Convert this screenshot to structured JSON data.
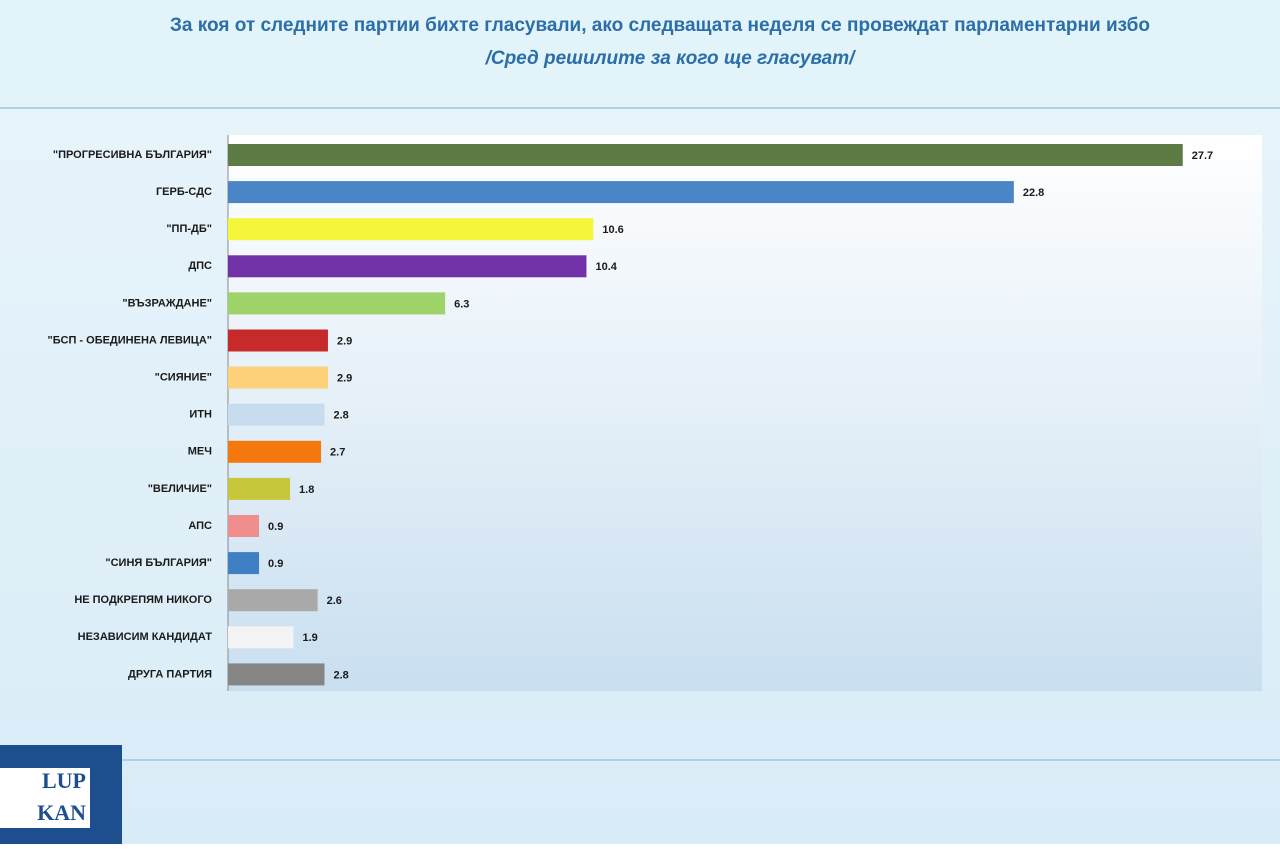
{
  "chart_data": {
    "type": "hbar",
    "title": "За коя от следните партии бихте  гласували,  ако следващата неделя се провеждат парламентарни избо",
    "subtitle": "/Сред решилите за кого ще гласуват/",
    "categories": [
      "\"ПРОГРЕСИВНА БЪЛГАРИЯ\"",
      "ГЕРБ-СДС",
      "\"ПП-ДБ\"",
      "ДПС",
      "\"ВЪЗРАЖДАНЕ\"",
      "\"БСП - ОБЕДИНЕНА ЛЕВИЦА\"",
      "\"СИЯНИЕ\"",
      "ИТН",
      "МЕЧ",
      "\"ВЕЛИЧИЕ\"",
      "АПС",
      "\"СИНЯ БЪЛГАРИЯ\"",
      "НЕ ПОДКРЕПЯМ НИКОГО",
      "НЕЗАВИСИМ КАНДИДАТ",
      "ДРУГА ПАРТИЯ"
    ],
    "values": [
      27.7,
      22.8,
      10.6,
      10.4,
      6.3,
      2.9,
      2.9,
      2.8,
      2.7,
      1.8,
      0.9,
      0.9,
      2.6,
      1.9,
      2.8
    ],
    "colors": [
      "#5e7a45",
      "#4a86c5",
      "#f5f53a",
      "#7132a8",
      "#9ed36a",
      "#c62a2a",
      "#fdd07a",
      "#c7dcef",
      "#f5780f",
      "#c6c73a",
      "#f08d8d",
      "#3f7fc4",
      "#a9a9a9",
      "#f3f3f3",
      "#858585"
    ],
    "xlim": [
      0,
      30
    ]
  },
  "logo": {
    "line1": "LUP",
    "line2": "KAN"
  }
}
